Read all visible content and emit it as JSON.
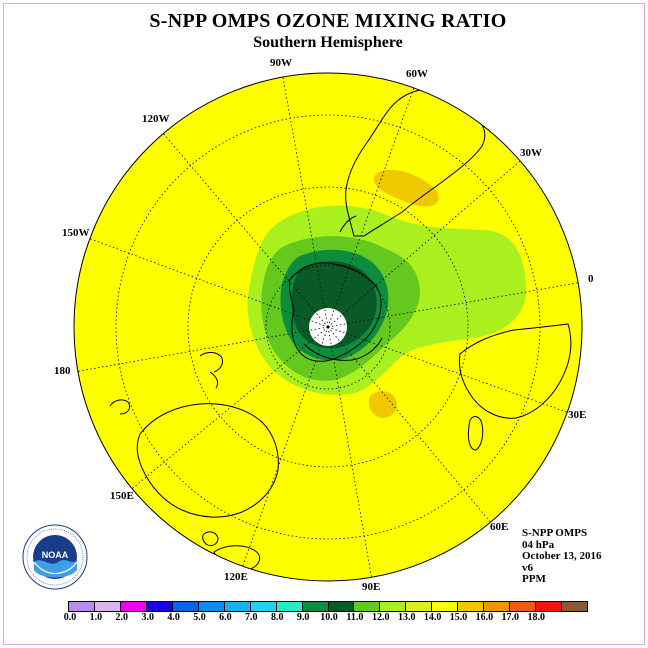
{
  "header": {
    "title": "S-NPP OMPS OZONE MIXING RATIO",
    "subtitle": "Southern Hemisphere"
  },
  "map": {
    "projection": "polar stereographic, south pole",
    "longitude_labels": [
      "90W",
      "60W",
      "30W",
      "0",
      "30E",
      "60E",
      "90E",
      "120E",
      "150E",
      "180",
      "150W",
      "120W"
    ],
    "latitude_circles": "dotted",
    "pole_fill": "#ffffff"
  },
  "info": {
    "instrument": "S-NPP OMPS",
    "level": "04 hPa",
    "date": "October 13, 2016",
    "version": "v6",
    "units": "PPM"
  },
  "colorbar": {
    "colors": [
      "#b88cf0",
      "#dcb4f4",
      "#f000f0",
      "#1a00e8",
      "#0a64e8",
      "#0a8cf0",
      "#14b4f0",
      "#1ed4f0",
      "#20f0c8",
      "#0c8c3c",
      "#0a5a28",
      "#64c81e",
      "#aaf01e",
      "#dcf01e",
      "#ffff00",
      "#f0c800",
      "#f09600",
      "#f05a14",
      "#f01414",
      "#8c5a32"
    ],
    "tick_labels": [
      "0.0",
      "1.0",
      "2.0",
      "3.0",
      "4.0",
      "5.0",
      "6.0",
      "7.0",
      "8.0",
      "9.0",
      "10.0",
      "11.0",
      "12.0",
      "13.0",
      "14.0",
      "15.0",
      "16.0",
      "17.0",
      "18.0"
    ]
  },
  "logo": {
    "text": "NOAA",
    "ring_text": "NATIONAL OCEANIC AND ATMOSPHERIC ADMINISTRATION · U.S. DEPARTMENT OF COMMERCE"
  },
  "colors": {
    "background_field": "#ffff00",
    "light_green": "#aaf01e",
    "medium_green": "#64c81e",
    "dark_green": "#0a5a28",
    "forest_green": "#0c8c3c",
    "orange": "#f0c800"
  }
}
